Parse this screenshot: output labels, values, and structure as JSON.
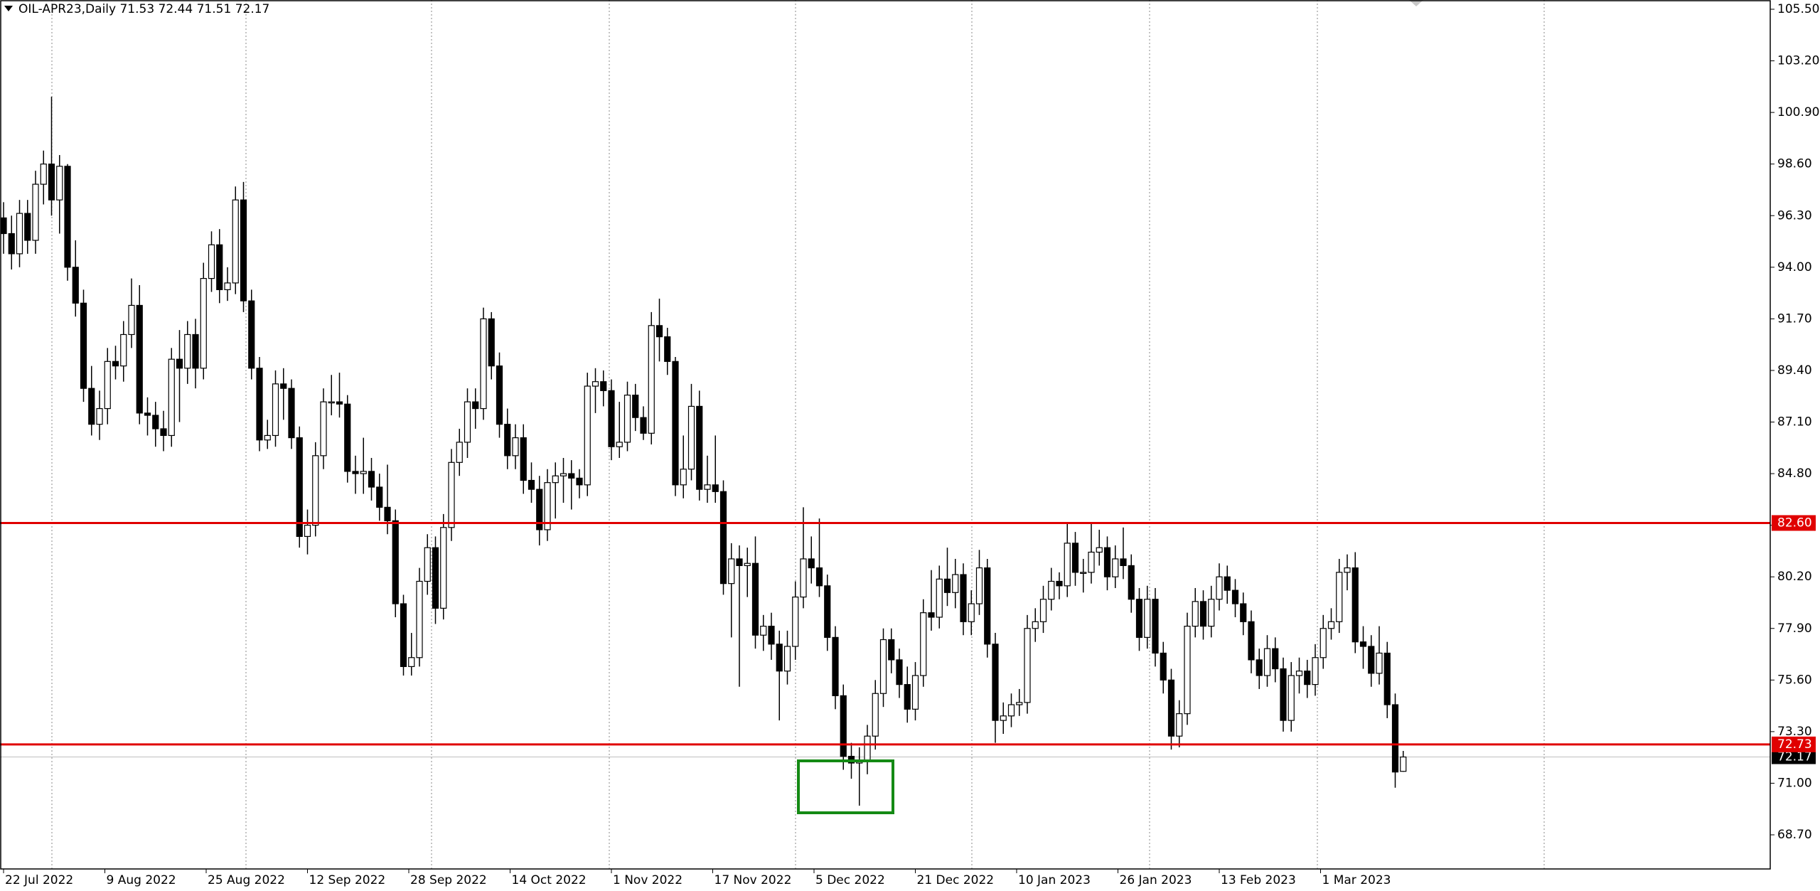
{
  "chart_data": {
    "type": "candlestick",
    "title": "OIL-APR23,Daily  71.53 72.44 71.51 72.17",
    "bull_color": "#ffffff",
    "bear_color": "#000000",
    "ylim": [
      68.7,
      105.5
    ],
    "yticks": [
      {
        "value": 105.5,
        "label": "105.50"
      },
      {
        "value": 103.2,
        "label": "103.20"
      },
      {
        "value": 100.9,
        "label": "100.90"
      },
      {
        "value": 98.6,
        "label": "98.60"
      },
      {
        "value": 96.3,
        "label": "96.30"
      },
      {
        "value": 94.0,
        "label": "94.00"
      },
      {
        "value": 91.7,
        "label": "91.70"
      },
      {
        "value": 89.4,
        "label": "89.40"
      },
      {
        "value": 87.1,
        "label": "87.10"
      },
      {
        "value": 84.8,
        "label": "84.80"
      },
      {
        "value": 82.5,
        "label": "82.50"
      },
      {
        "value": 80.2,
        "label": "80.20"
      },
      {
        "value": 77.9,
        "label": "77.90"
      },
      {
        "value": 75.6,
        "label": "75.60"
      },
      {
        "value": 73.3,
        "label": "73.30"
      },
      {
        "value": 71.0,
        "label": "71.00"
      },
      {
        "value": 68.7,
        "label": "68.70"
      }
    ],
    "x_labels": [
      "22 Jul 2022",
      "9 Aug 2022",
      "25 Aug 2022",
      "12 Sep 2022",
      "28 Sep 2022",
      "14 Oct 2022",
      "1 Nov 2022",
      "17 Nov 2022",
      "5 Dec 2022",
      "21 Dec 2022",
      "10 Jan 2023",
      "26 Jan 2023",
      "13 Feb 2023",
      "1 Mar 2023"
    ],
    "levels": [
      {
        "value": 82.6,
        "label": "82.60",
        "color": "#e00000"
      },
      {
        "value": 72.73,
        "label": "72.73",
        "color": "#e00000"
      }
    ],
    "last_price": {
      "value": 72.17,
      "label": "72.17"
    },
    "ohlc": [
      [
        96.2,
        96.9,
        94.6,
        95.5
      ],
      [
        95.5,
        96.3,
        93.9,
        94.6
      ],
      [
        94.6,
        97.0,
        94.0,
        96.4
      ],
      [
        96.4,
        97.0,
        94.6,
        95.2
      ],
      [
        95.2,
        98.3,
        94.6,
        97.7
      ],
      [
        97.7,
        99.2,
        96.8,
        98.6
      ],
      [
        98.6,
        101.6,
        96.3,
        97.0
      ],
      [
        97.0,
        99.0,
        95.5,
        98.5
      ],
      [
        98.5,
        98.6,
        93.4,
        94.0
      ],
      [
        94.0,
        95.2,
        91.8,
        92.4
      ],
      [
        92.4,
        93.0,
        88.0,
        88.6
      ],
      [
        88.6,
        89.6,
        86.5,
        87.0
      ],
      [
        87.0,
        88.5,
        86.3,
        87.7
      ],
      [
        87.7,
        90.4,
        87.0,
        89.8
      ],
      [
        89.8,
        90.5,
        89.0,
        89.6
      ],
      [
        89.6,
        91.6,
        88.9,
        91.0
      ],
      [
        91.0,
        93.5,
        90.4,
        92.3
      ],
      [
        92.3,
        93.2,
        87.0,
        87.5
      ],
      [
        87.5,
        88.2,
        86.5,
        87.4
      ],
      [
        87.4,
        88.0,
        86.0,
        86.8
      ],
      [
        86.8,
        87.6,
        85.8,
        86.5
      ],
      [
        86.5,
        90.4,
        86.0,
        89.9
      ],
      [
        89.9,
        91.2,
        87.1,
        89.5
      ],
      [
        89.5,
        91.6,
        88.8,
        91.0
      ],
      [
        91.0,
        91.7,
        88.6,
        89.5
      ],
      [
        89.5,
        94.2,
        89.0,
        93.5
      ],
      [
        93.5,
        95.6,
        92.9,
        95.0
      ],
      [
        95.0,
        95.7,
        92.4,
        93.0
      ],
      [
        93.0,
        94.0,
        92.5,
        93.3
      ],
      [
        93.3,
        97.6,
        92.8,
        97.0
      ],
      [
        97.0,
        97.8,
        92.0,
        92.5
      ],
      [
        92.5,
        93.0,
        89.0,
        89.5
      ],
      [
        89.5,
        90.0,
        85.8,
        86.3
      ],
      [
        86.3,
        87.2,
        85.9,
        86.5
      ],
      [
        86.5,
        89.4,
        86.0,
        88.8
      ],
      [
        88.8,
        89.5,
        87.2,
        88.6
      ],
      [
        88.6,
        89.0,
        85.9,
        86.4
      ],
      [
        86.4,
        86.9,
        81.5,
        82.0
      ],
      [
        82.0,
        83.2,
        81.2,
        82.5
      ],
      [
        82.5,
        86.2,
        82.0,
        85.6
      ],
      [
        85.6,
        88.6,
        85.0,
        88.0
      ],
      [
        88.0,
        89.2,
        87.4,
        88.0
      ],
      [
        88.0,
        89.3,
        87.3,
        87.9
      ],
      [
        87.9,
        88.3,
        84.4,
        84.9
      ],
      [
        84.9,
        85.6,
        83.9,
        84.8
      ],
      [
        84.8,
        86.4,
        83.9,
        84.9
      ],
      [
        84.9,
        85.5,
        83.6,
        84.2
      ],
      [
        84.2,
        84.8,
        82.7,
        83.3
      ],
      [
        83.3,
        85.2,
        82.1,
        82.7
      ],
      [
        82.7,
        83.2,
        78.4,
        79.0
      ],
      [
        79.0,
        79.4,
        75.8,
        76.2
      ],
      [
        76.2,
        77.7,
        75.8,
        76.6
      ],
      [
        76.6,
        80.6,
        76.2,
        80.0
      ],
      [
        80.0,
        82.1,
        79.4,
        81.5
      ],
      [
        81.5,
        82.0,
        78.1,
        78.8
      ],
      [
        78.8,
        83.0,
        78.3,
        82.4
      ],
      [
        82.4,
        85.9,
        81.8,
        85.3
      ],
      [
        85.3,
        86.8,
        84.7,
        86.2
      ],
      [
        86.2,
        88.6,
        85.5,
        88.0
      ],
      [
        88.0,
        88.6,
        86.8,
        87.7
      ],
      [
        87.7,
        92.2,
        87.2,
        91.7
      ],
      [
        91.7,
        92.0,
        89.0,
        89.6
      ],
      [
        89.6,
        90.2,
        86.4,
        87.0
      ],
      [
        87.0,
        87.7,
        85.0,
        85.6
      ],
      [
        85.6,
        87.0,
        85.0,
        86.4
      ],
      [
        86.4,
        87.0,
        83.9,
        84.5
      ],
      [
        84.5,
        85.3,
        83.5,
        84.1
      ],
      [
        84.1,
        84.7,
        81.6,
        82.3
      ],
      [
        82.3,
        85.0,
        81.8,
        84.4
      ],
      [
        84.4,
        85.3,
        82.8,
        84.7
      ],
      [
        84.7,
        85.5,
        83.5,
        84.8
      ],
      [
        84.8,
        85.4,
        83.2,
        84.6
      ],
      [
        84.6,
        85.0,
        83.7,
        84.3
      ],
      [
        84.3,
        89.3,
        83.8,
        88.7
      ],
      [
        88.7,
        89.5,
        87.5,
        88.9
      ],
      [
        88.9,
        89.4,
        87.8,
        88.5
      ],
      [
        88.5,
        89.0,
        85.4,
        86.0
      ],
      [
        86.0,
        88.0,
        85.5,
        86.2
      ],
      [
        86.2,
        88.9,
        85.8,
        88.3
      ],
      [
        88.3,
        88.8,
        86.7,
        87.3
      ],
      [
        87.3,
        87.8,
        86.3,
        86.6
      ],
      [
        86.6,
        92.0,
        86.1,
        91.4
      ],
      [
        91.4,
        92.6,
        89.8,
        90.9
      ],
      [
        90.9,
        91.3,
        89.2,
        89.8
      ],
      [
        89.8,
        90.0,
        83.8,
        84.3
      ],
      [
        84.3,
        86.5,
        83.7,
        85.0
      ],
      [
        85.0,
        88.8,
        84.5,
        87.8
      ],
      [
        87.8,
        88.5,
        83.6,
        84.1
      ],
      [
        84.1,
        85.6,
        83.5,
        84.3
      ],
      [
        84.3,
        86.5,
        83.5,
        84.0
      ],
      [
        84.0,
        84.5,
        79.4,
        79.9
      ],
      [
        79.9,
        81.7,
        77.5,
        81.0
      ],
      [
        81.0,
        81.6,
        75.3,
        80.7
      ],
      [
        80.7,
        81.5,
        79.3,
        80.8
      ],
      [
        80.8,
        82.0,
        77.0,
        77.6
      ],
      [
        77.6,
        78.5,
        76.9,
        78.0
      ],
      [
        78.0,
        78.6,
        76.5,
        77.2
      ],
      [
        77.2,
        77.8,
        73.8,
        76.0
      ],
      [
        76.0,
        77.8,
        75.4,
        77.1
      ],
      [
        77.1,
        80.0,
        76.5,
        79.3
      ],
      [
        79.3,
        83.3,
        78.8,
        81.0
      ],
      [
        81.0,
        82.0,
        79.9,
        80.6
      ],
      [
        80.6,
        82.8,
        79.3,
        79.8
      ],
      [
        79.8,
        80.3,
        76.9,
        77.5
      ],
      [
        77.5,
        78.0,
        74.3,
        74.9
      ],
      [
        74.9,
        75.4,
        71.6,
        72.2
      ],
      [
        72.2,
        72.8,
        71.2,
        71.9
      ],
      [
        71.9,
        72.6,
        70.0,
        72.0
      ],
      [
        72.0,
        73.6,
        71.4,
        73.1
      ],
      [
        73.1,
        75.6,
        72.5,
        75.0
      ],
      [
        75.0,
        77.9,
        74.4,
        77.4
      ],
      [
        77.4,
        77.9,
        75.9,
        76.5
      ],
      [
        76.5,
        77.0,
        74.8,
        75.4
      ],
      [
        75.4,
        76.2,
        73.7,
        74.3
      ],
      [
        74.3,
        76.4,
        73.8,
        75.8
      ],
      [
        75.8,
        79.2,
        75.3,
        78.6
      ],
      [
        78.6,
        80.5,
        77.8,
        78.4
      ],
      [
        78.4,
        80.7,
        77.9,
        80.1
      ],
      [
        80.1,
        81.5,
        78.9,
        79.5
      ],
      [
        79.5,
        81.0,
        78.8,
        80.3
      ],
      [
        80.3,
        80.8,
        77.6,
        78.2
      ],
      [
        78.2,
        79.6,
        77.6,
        79.0
      ],
      [
        79.0,
        81.4,
        78.5,
        80.6
      ],
      [
        80.6,
        81.0,
        76.6,
        77.2
      ],
      [
        77.2,
        77.7,
        72.8,
        73.8
      ],
      [
        73.8,
        74.6,
        73.2,
        74.0
      ],
      [
        74.0,
        75.0,
        73.5,
        74.5
      ],
      [
        74.5,
        75.2,
        74.0,
        74.6
      ],
      [
        74.6,
        78.5,
        74.1,
        77.9
      ],
      [
        77.9,
        78.8,
        77.3,
        78.2
      ],
      [
        78.2,
        79.8,
        77.7,
        79.2
      ],
      [
        79.2,
        80.6,
        78.7,
        80.0
      ],
      [
        80.0,
        80.4,
        79.2,
        79.8
      ],
      [
        79.8,
        82.6,
        79.3,
        81.7
      ],
      [
        81.7,
        82.2,
        79.8,
        80.4
      ],
      [
        80.4,
        81.0,
        79.5,
        80.4
      ],
      [
        80.4,
        82.6,
        79.9,
        81.3
      ],
      [
        81.3,
        82.3,
        80.7,
        81.5
      ],
      [
        81.5,
        82.0,
        79.6,
        80.2
      ],
      [
        80.2,
        81.6,
        79.7,
        81.0
      ],
      [
        81.0,
        82.4,
        80.1,
        80.7
      ],
      [
        80.7,
        81.2,
        78.6,
        79.2
      ],
      [
        79.2,
        79.7,
        76.9,
        77.5
      ],
      [
        77.5,
        79.8,
        77.0,
        79.2
      ],
      [
        79.2,
        79.7,
        76.2,
        76.8
      ],
      [
        76.8,
        77.3,
        75.0,
        75.6
      ],
      [
        75.6,
        76.1,
        72.5,
        73.1
      ],
      [
        73.1,
        74.7,
        72.6,
        74.1
      ],
      [
        74.1,
        78.6,
        73.6,
        78.0
      ],
      [
        78.0,
        79.7,
        77.5,
        79.1
      ],
      [
        79.1,
        79.6,
        77.4,
        78.0
      ],
      [
        78.0,
        79.8,
        77.5,
        79.2
      ],
      [
        79.2,
        80.8,
        78.7,
        80.2
      ],
      [
        80.2,
        80.7,
        79.0,
        79.6
      ],
      [
        79.6,
        80.1,
        78.4,
        79.0
      ],
      [
        79.0,
        79.5,
        77.6,
        78.2
      ],
      [
        78.2,
        78.7,
        75.9,
        76.5
      ],
      [
        76.5,
        77.0,
        75.2,
        75.8
      ],
      [
        75.8,
        77.6,
        75.3,
        77.0
      ],
      [
        77.0,
        77.5,
        75.5,
        76.1
      ],
      [
        76.1,
        76.6,
        73.3,
        73.8
      ],
      [
        73.8,
        76.4,
        73.3,
        75.8
      ],
      [
        75.8,
        76.6,
        75.0,
        76.0
      ],
      [
        76.0,
        76.5,
        74.8,
        75.4
      ],
      [
        75.4,
        77.2,
        74.9,
        76.6
      ],
      [
        76.6,
        78.5,
        76.1,
        77.9
      ],
      [
        77.9,
        78.8,
        77.4,
        78.2
      ],
      [
        78.2,
        81.0,
        77.7,
        80.4
      ],
      [
        80.4,
        81.2,
        79.6,
        80.6
      ],
      [
        80.6,
        81.3,
        76.8,
        77.3
      ],
      [
        77.3,
        78.0,
        76.1,
        77.1
      ],
      [
        77.1,
        77.6,
        75.3,
        75.9
      ],
      [
        75.9,
        78.0,
        75.4,
        76.8
      ],
      [
        76.8,
        77.3,
        73.9,
        74.5
      ],
      [
        74.5,
        75.0,
        70.8,
        71.5
      ],
      [
        71.53,
        72.44,
        71.51,
        72.17
      ]
    ]
  }
}
